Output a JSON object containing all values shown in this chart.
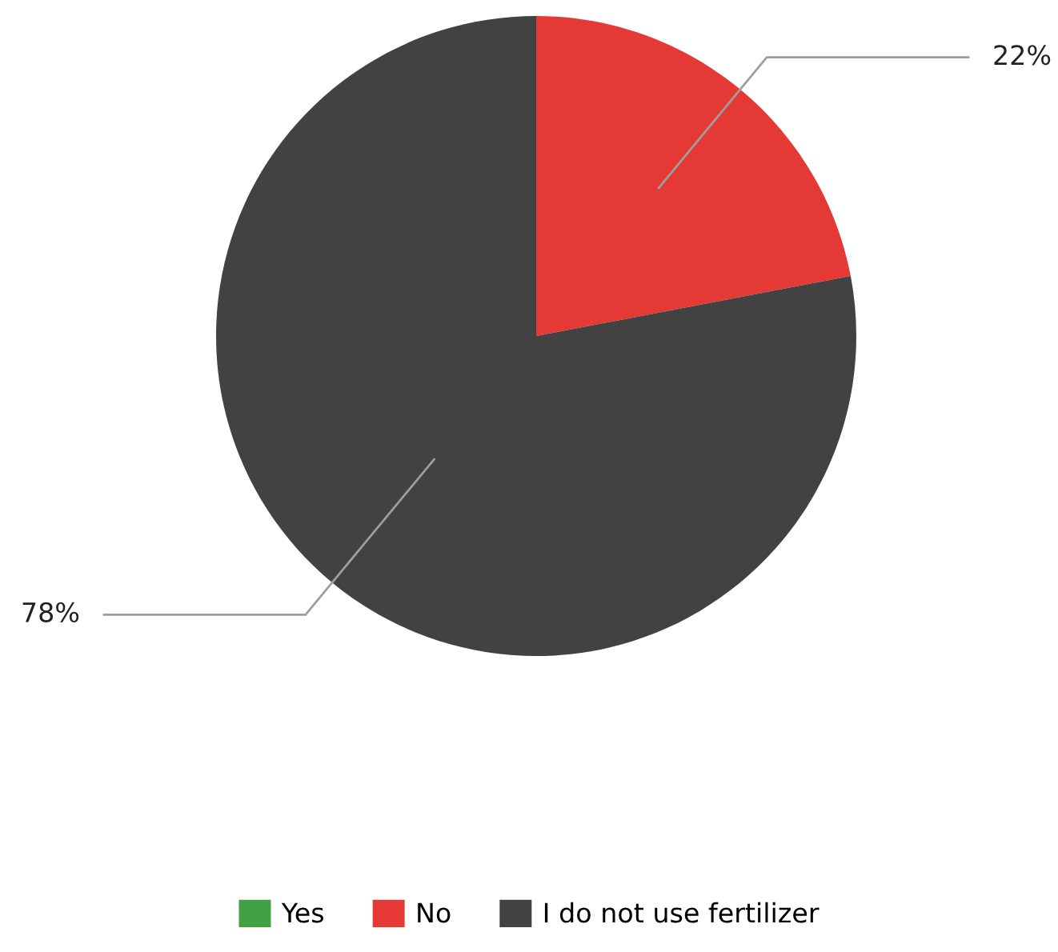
{
  "chart_data": {
    "type": "pie",
    "categories": [
      "Yes",
      "No",
      "I do not use fertilizer"
    ],
    "values": [
      0,
      22,
      78
    ],
    "colors": [
      "#43a047",
      "#e53935",
      "#424242"
    ],
    "value_labels": [
      null,
      "22%",
      "78%"
    ],
    "legend": "bottom"
  }
}
